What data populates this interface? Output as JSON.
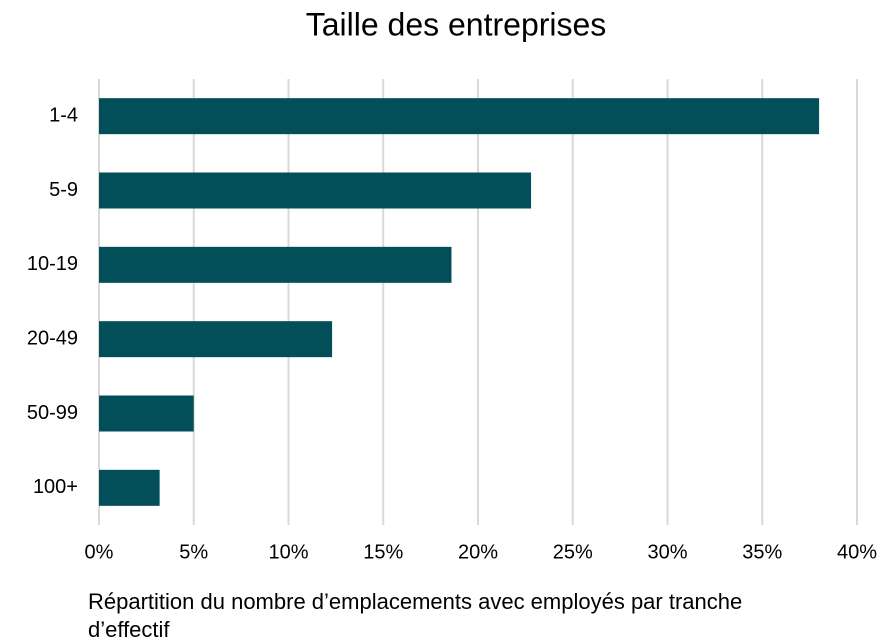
{
  "chart_data": {
    "type": "bar",
    "orientation": "horizontal",
    "title": "Taille des entreprises",
    "x_label": "Répartition du nombre d’emplacements avec employés par tranche d’effectif",
    "categories": [
      "1-4",
      "5-9",
      "10-19",
      "20-49",
      "50-99",
      "100+"
    ],
    "values": [
      38.0,
      22.8,
      18.6,
      12.3,
      5.0,
      3.2
    ],
    "color": "#034f59",
    "xlim": [
      0,
      40
    ],
    "xticks": [
      {
        "value": 0,
        "label": "0%"
      },
      {
        "value": 5,
        "label": "5%"
      },
      {
        "value": 10,
        "label": "10%"
      },
      {
        "value": 15,
        "label": "15%"
      },
      {
        "value": 20,
        "label": "20%"
      },
      {
        "value": 25,
        "label": "25%"
      },
      {
        "value": 30,
        "label": "30%"
      },
      {
        "value": 35,
        "label": "35%"
      },
      {
        "value": 40,
        "label": "40%"
      }
    ],
    "grid": true
  }
}
